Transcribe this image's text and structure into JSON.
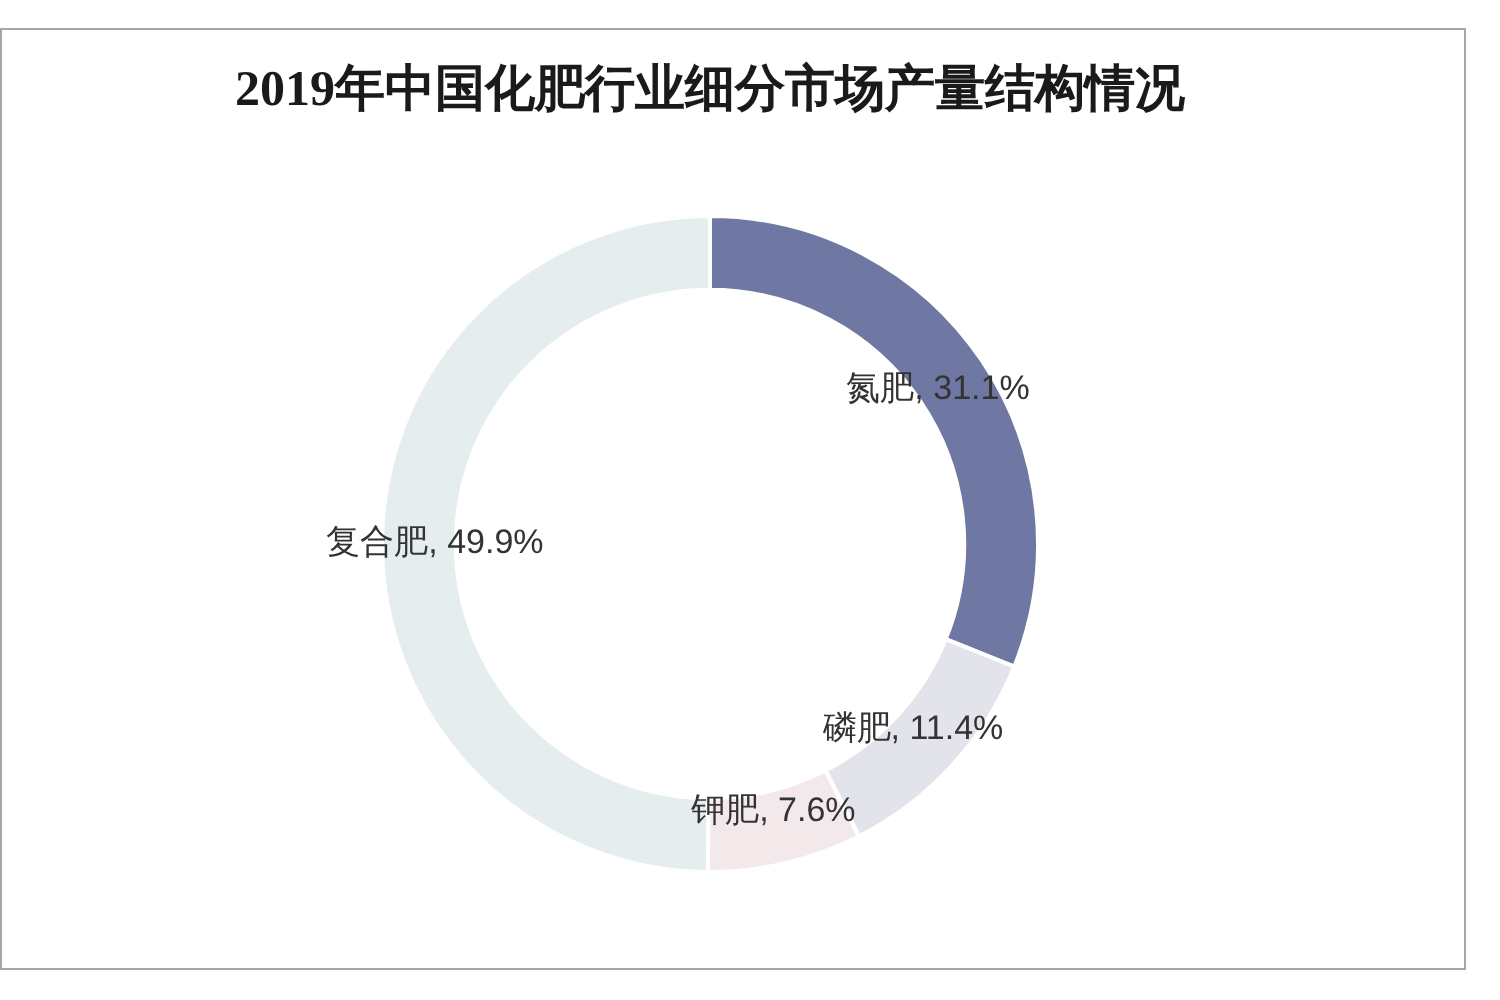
{
  "chart_data": {
    "type": "donut",
    "title": "2019年中国化肥行业细分市场产量结构情况",
    "categories": [
      "氮肥",
      "磷肥",
      "钾肥",
      "复合肥"
    ],
    "values": [
      31.1,
      11.4,
      7.6,
      49.9
    ],
    "colors": [
      "#6f78a3",
      "#e3e3ec",
      "#f3e9eb",
      "#e5edef"
    ],
    "value_labels": [
      "31.1%",
      "11.4%",
      "7.6%",
      "49.9%"
    ]
  }
}
